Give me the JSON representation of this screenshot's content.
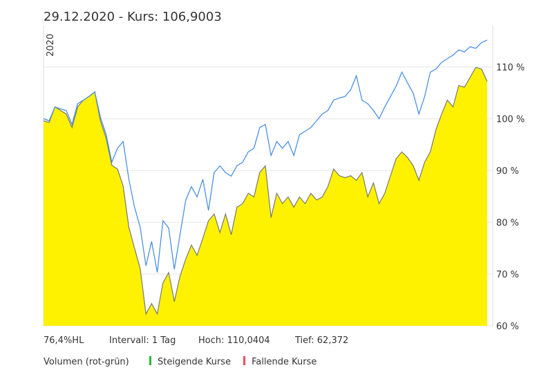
{
  "header": {
    "title": "29.12.2020  -  Kurs: 106,9003"
  },
  "chart_data": {
    "type": "area",
    "period_label": "2020",
    "categories": [
      null,
      null,
      null,
      null,
      null,
      null,
      null,
      null,
      null,
      null,
      null,
      null,
      null,
      null,
      null,
      null,
      null,
      null,
      null,
      null,
      null,
      null,
      null,
      null,
      null,
      null,
      null,
      null,
      null,
      null,
      null,
      null,
      null,
      null,
      null,
      null,
      null,
      null,
      null,
      null,
      null,
      null,
      null,
      null,
      null,
      null,
      null,
      null,
      null,
      null,
      null,
      null,
      null,
      null,
      null,
      null,
      null,
      null,
      null,
      null,
      null,
      null,
      null,
      null,
      null,
      null,
      null,
      null,
      null,
      null,
      null,
      null,
      null,
      null,
      null,
      null,
      null,
      null,
      null
    ],
    "series": [
      {
        "style": "area",
        "color": "#fff200",
        "line_color": "#777777",
        "values": [
          99.6,
          99.3,
          102.3,
          101.6,
          100.9,
          98.3,
          102.3,
          103.6,
          104.3,
          105.2,
          99.6,
          96.3,
          91,
          90.3,
          87,
          79,
          75,
          71,
          62.3,
          64.3,
          62.3,
          68.3,
          70.3,
          64.7,
          69.6,
          72.9,
          75.6,
          73.6,
          76.9,
          80.3,
          81.6,
          78,
          81.6,
          77.6,
          82.9,
          83.6,
          85.6,
          84.9,
          89.6,
          90.9,
          80.9,
          85.6,
          83.6,
          84.9,
          82.9,
          84.9,
          83.6,
          85.6,
          84.3,
          84.9,
          86.9,
          90.3,
          89,
          88.6,
          89,
          88.1,
          89.6,
          84.9,
          87.6,
          83.6,
          85.6,
          89,
          92.3,
          93.6,
          92.5,
          90.9,
          88.1,
          91.6,
          93.6,
          97.9,
          100.9,
          103.6,
          102.3,
          106.4,
          106.1,
          108,
          109.9,
          109.6,
          107.2
        ]
      },
      {
        "style": "line",
        "color": "#4a90e2",
        "values": [
          100,
          99.6,
          102.3,
          101.9,
          101.6,
          98.9,
          102.9,
          103.6,
          104.3,
          105.2,
          100.3,
          97,
          91.6,
          94.3,
          95.6,
          88.3,
          82.9,
          79,
          71.6,
          76.3,
          70.3,
          80.3,
          78.9,
          70.9,
          77.6,
          84.3,
          86.9,
          84.9,
          88.3,
          82.3,
          89.6,
          90.9,
          89.6,
          88.9,
          90.9,
          91.6,
          93.6,
          94.3,
          98.3,
          98.9,
          92.9,
          95.6,
          94.3,
          95.6,
          92.9,
          96.9,
          97.6,
          98.3,
          99.6,
          100.9,
          101.6,
          103.6,
          104,
          104.3,
          105.6,
          108.3,
          103.6,
          102.9,
          101.6,
          100,
          102.3,
          104.3,
          106.3,
          109,
          106.9,
          104.9,
          100.9,
          104.3,
          109,
          109.6,
          110.9,
          111.6,
          112.3,
          113.3,
          112.9,
          113.9,
          113.6,
          114.7,
          115.2
        ]
      }
    ],
    "ylim": [
      60,
      118
    ],
    "yticks": [
      {
        "value": 60,
        "label": "60 %"
      },
      {
        "value": 70,
        "label": "70 %"
      },
      {
        "value": 80,
        "label": "80 %"
      },
      {
        "value": 90,
        "label": "90 %"
      },
      {
        "value": 100,
        "label": "100 %"
      },
      {
        "value": 110,
        "label": "110 %"
      }
    ],
    "grid": true
  },
  "footer": {
    "stats": [
      "76,4%HL",
      "Intervall: 1 Tag",
      "Hoch: 110,0404",
      "Tief:  62,372"
    ],
    "volume_label": "Volumen (rot-grün)",
    "legend": [
      {
        "label": "Steigende Kurse",
        "color": "#22bb33"
      },
      {
        "label": "Fallende Kurse",
        "color": "#e84b5a"
      }
    ]
  }
}
